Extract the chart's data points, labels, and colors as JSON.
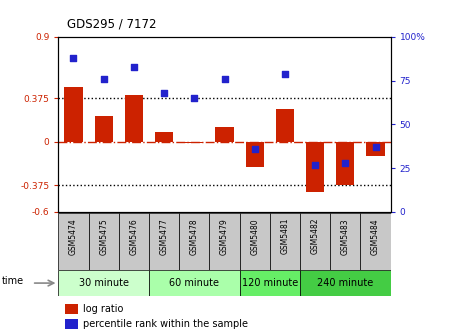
{
  "title": "GDS295 / 7172",
  "samples": [
    "GSM5474",
    "GSM5475",
    "GSM5476",
    "GSM5477",
    "GSM5478",
    "GSM5479",
    "GSM5480",
    "GSM5481",
    "GSM5482",
    "GSM5483",
    "GSM5484"
  ],
  "log_ratio": [
    0.47,
    0.22,
    0.4,
    0.08,
    -0.01,
    0.13,
    -0.22,
    0.28,
    -0.43,
    -0.37,
    -0.12
  ],
  "percentile": [
    88,
    76,
    83,
    68,
    65,
    76,
    36,
    79,
    27,
    28,
    37
  ],
  "bar_color": "#cc2200",
  "dot_color": "#2222cc",
  "ylim_left": [
    -0.6,
    0.9
  ],
  "ylim_right": [
    0,
    100
  ],
  "hlines": [
    0.375,
    -0.375
  ],
  "zero_line": 0.0,
  "dotted_color": "black",
  "zero_color": "#cc2200",
  "groups": [
    {
      "label": "30 minute",
      "start": 0,
      "end": 3,
      "color": "#ccffcc"
    },
    {
      "label": "60 minute",
      "start": 3,
      "end": 6,
      "color": "#aaffaa"
    },
    {
      "label": "120 minute",
      "start": 6,
      "end": 8,
      "color": "#66ee66"
    },
    {
      "label": "240 minute",
      "start": 8,
      "end": 11,
      "color": "#44cc44"
    }
  ],
  "time_label": "time",
  "legend_bar_label": "log ratio",
  "legend_dot_label": "percentile rank within the sample",
  "right_yticks": [
    0,
    25,
    50,
    75,
    100
  ],
  "right_yticklabels": [
    "0",
    "25",
    "50",
    "75",
    "100%"
  ],
  "left_yticks": [
    -0.6,
    -0.375,
    0,
    0.375,
    0.9
  ],
  "left_yticklabels": [
    "-0.6",
    "-0.375",
    "0",
    "0.375",
    "0.9"
  ],
  "bg_color": "white"
}
